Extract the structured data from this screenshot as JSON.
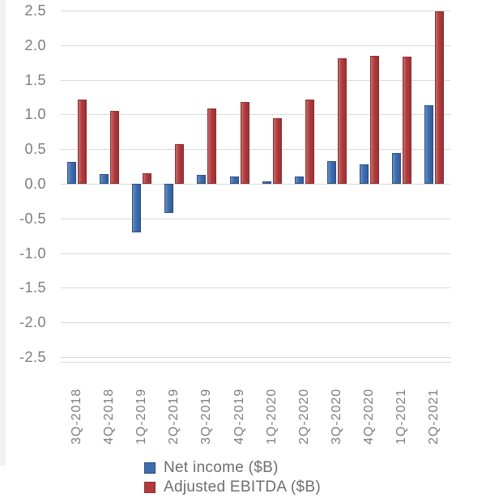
{
  "chart_data": {
    "type": "bar",
    "title": "",
    "xlabel": "",
    "ylabel": "",
    "categories": [
      "3Q-2018",
      "4Q-2018",
      "1Q-2019",
      "2Q-2019",
      "3Q-2019",
      "4Q-2019",
      "1Q-2020",
      "2Q-2020",
      "3Q-2020",
      "4Q-2020",
      "1Q-2021",
      "2Q-2021"
    ],
    "series": [
      {
        "name": "Net income ($B)",
        "color": "#3e6dae",
        "highlight_color": "#6a90c3",
        "shadow_color": "#335d9a",
        "border_color": "#2b4f80",
        "values": [
          0.32,
          0.14,
          -0.7,
          -0.42,
          0.13,
          0.1,
          0.03,
          0.1,
          0.33,
          0.28,
          0.45,
          1.13
        ]
      },
      {
        "name": "Adjusted EBITDA ($B)",
        "color": "#b03b3c",
        "highlight_color": "#c46f6f",
        "shadow_color": "#9b3233",
        "border_color": "#8e2d2e",
        "values": [
          1.21,
          1.05,
          0.15,
          0.57,
          1.09,
          1.18,
          0.95,
          1.21,
          1.81,
          1.85,
          1.84,
          2.49
        ]
      }
    ],
    "ylim": [
      -2.5,
      2.5
    ],
    "ytick_step": 0.5,
    "ytick_labels": [
      "2.5",
      "2.0",
      "1.5",
      "1.0",
      "0.5",
      "0.0",
      "-0.5",
      "-1.0",
      "-1.5",
      "-2.0",
      "-2.5"
    ],
    "grid": true,
    "gridline_color": "#d9d9d9",
    "axis_text_color": "#7d7d7d",
    "legend_position": "bottom",
    "legend_text_color": "#6e6e6e"
  }
}
